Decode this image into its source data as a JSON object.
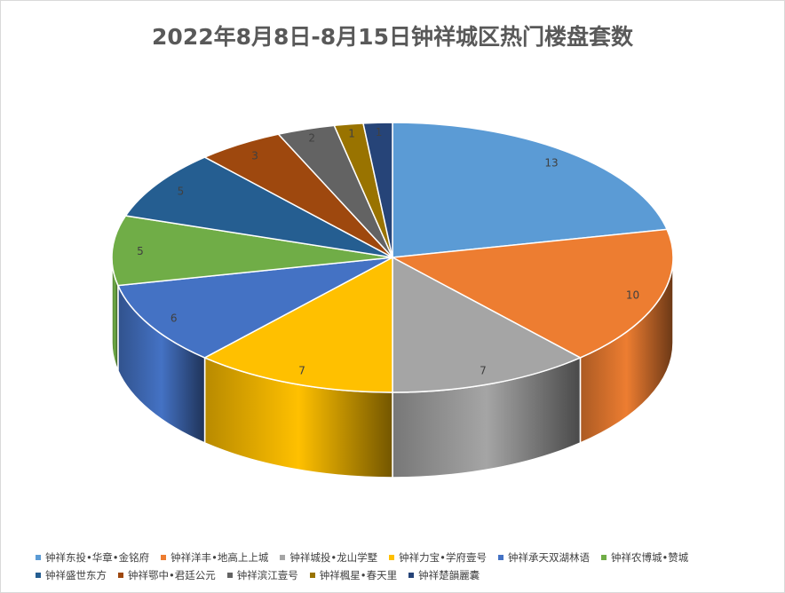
{
  "chart_data": {
    "type": "pie",
    "title": "2022年8月8日-8月15日钟祥城区热门楼盘套数",
    "categories": [
      "钟祥东投•华章•金铭府",
      "钟祥洋丰•地高上上城",
      "钟祥城投•龙山学墅",
      "钟祥力宝•学府壹号",
      "钟祥承天双湖林语",
      "钟祥农博城•赞城",
      "钟祥盛世东方",
      "钟祥鄂中•君廷公元",
      "钟祥滨江壹号",
      "钟祥楓星•春天里",
      "钟祥楚韻麗囊"
    ],
    "values": [
      13,
      10,
      7,
      7,
      6,
      5,
      5,
      3,
      2,
      1,
      1
    ],
    "colors": [
      "#5b9bd5",
      "#ed7d31",
      "#a5a5a5",
      "#ffc000",
      "#4472c4",
      "#70ad47",
      "#255e91",
      "#9e480e",
      "#636363",
      "#997300",
      "#264478"
    ],
    "legend_position": "bottom",
    "show_data_labels": true
  }
}
